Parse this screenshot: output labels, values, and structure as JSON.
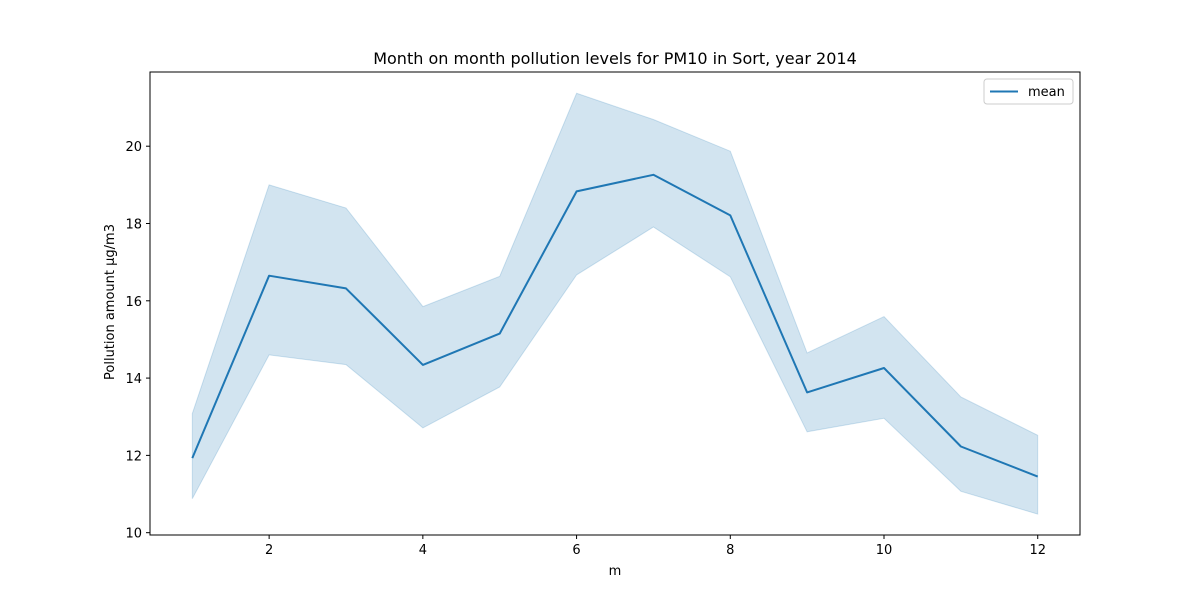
{
  "chart_data": {
    "type": "line",
    "title": "Month on month pollution levels for PM10 in Sort, year 2014",
    "xlabel": "m",
    "ylabel": "Pollution amount μg/m3",
    "x": [
      1,
      2,
      3,
      4,
      5,
      6,
      7,
      8,
      9,
      10,
      11,
      12
    ],
    "series": [
      {
        "name": "mean",
        "values": [
          11.93,
          16.65,
          16.32,
          14.34,
          15.15,
          18.83,
          19.26,
          18.21,
          13.63,
          14.26,
          12.23,
          11.45
        ],
        "ci_lower": [
          10.88,
          14.6,
          14.35,
          12.71,
          13.77,
          16.67,
          17.91,
          16.62,
          12.61,
          12.96,
          11.07,
          10.48
        ],
        "ci_upper": [
          13.08,
          19.0,
          18.4,
          15.85,
          16.63,
          21.37,
          20.69,
          19.87,
          14.65,
          15.59,
          13.51,
          12.52
        ],
        "color": "#1f77b4",
        "band_color": "#1f77b4"
      }
    ],
    "xlim": [
      0.45,
      12.55
    ],
    "ylim": [
      9.94,
      21.92
    ],
    "xticks": [
      2,
      4,
      6,
      8,
      10,
      12
    ],
    "yticks": [
      10,
      12,
      14,
      16,
      18,
      20
    ],
    "grid": false,
    "legend": "top-right"
  }
}
